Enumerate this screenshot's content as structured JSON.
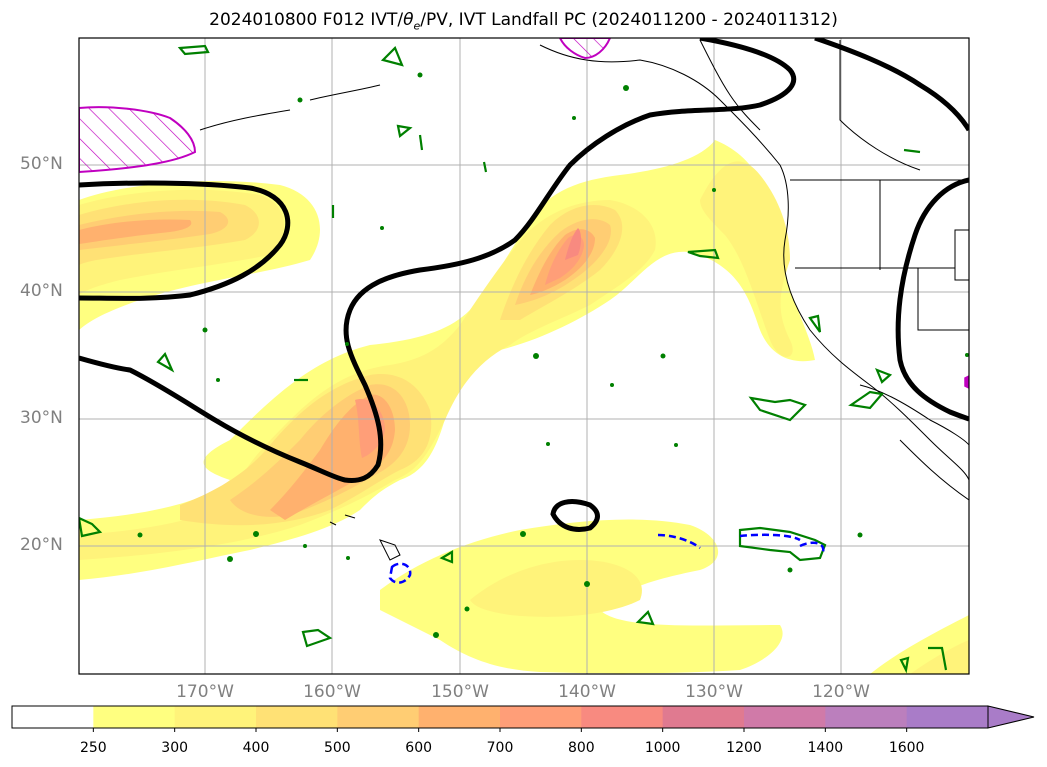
{
  "title_prefix": "2024010800 F012 IVT/",
  "title_theta": "θ",
  "title_theta_sub": "e",
  "title_suffix": "/PV, IVT Landfall PC (2024011200 - 2024011312)",
  "latitude_labels": [
    "50°N",
    "40°N",
    "30°N",
    "20°N"
  ],
  "longitude_labels": [
    "170°W",
    "160°W",
    "150°W",
    "140°W",
    "130°W",
    "120°W"
  ],
  "colorbar": {
    "ticks": [
      "250",
      "300",
      "400",
      "500",
      "600",
      "700",
      "800",
      "1000",
      "1200",
      "1400",
      "1600"
    ],
    "colors": [
      "#ffffff",
      "#ffff80",
      "#fff37a",
      "#ffe175",
      "#ffcd73",
      "#ffb16e",
      "#ff9e78",
      "#f88a80",
      "#e07a90",
      "#d07aa8",
      "#bb7fbd",
      "#a97cc8"
    ],
    "extend": "max"
  },
  "legend_colors": {
    "pv_contour": "#000000",
    "theta_e_positive": "#008000",
    "theta_e_negative": "#0000ff",
    "landfall_hatch": "#c000c0"
  }
}
